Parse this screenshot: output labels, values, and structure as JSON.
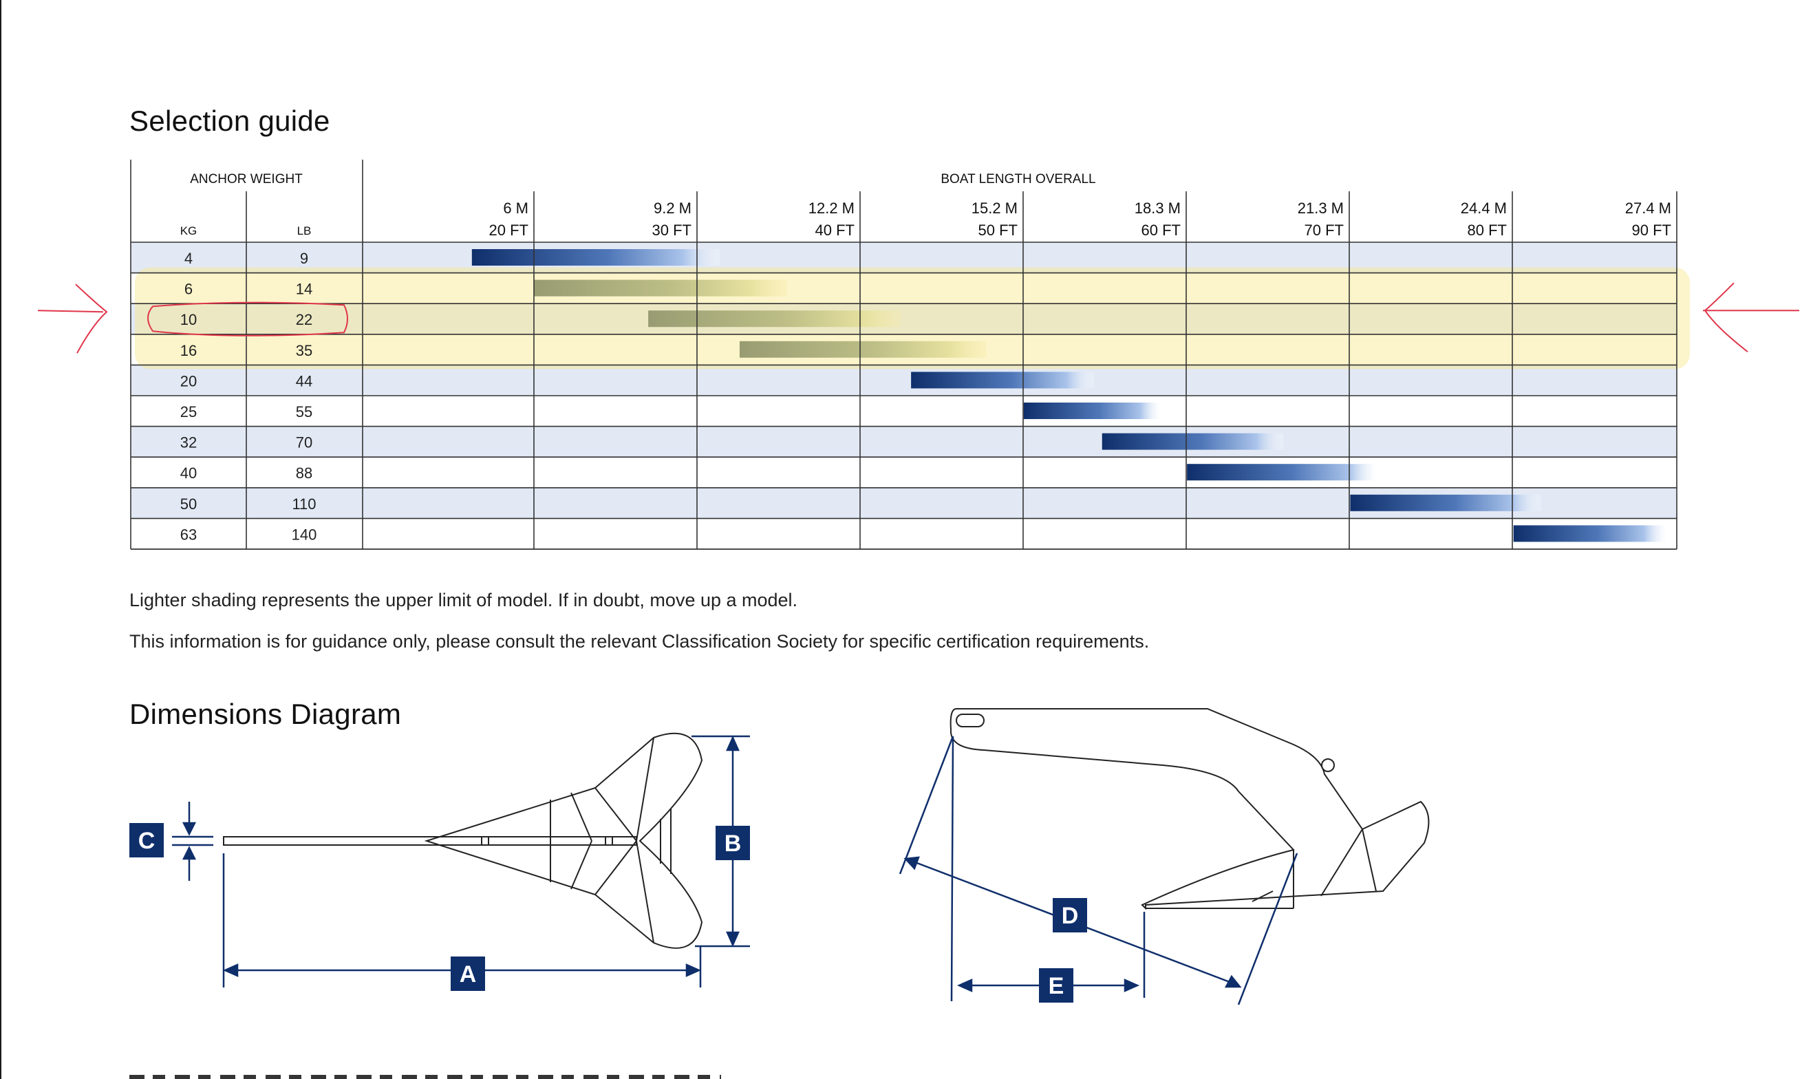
{
  "headings": {
    "selection": "Selection guide",
    "dimensions": "Dimensions Diagram"
  },
  "table": {
    "anchor_weight": "ANCHOR WEIGHT",
    "boat_length": "BOAT LENGTH OVERALL",
    "col_kg": "KG",
    "col_lb": "LB",
    "length_ticks": [
      {
        "m": "6",
        "m_unit": "M",
        "ft": "20",
        "ft_unit": "FT"
      },
      {
        "m": "9.2",
        "m_unit": "M",
        "ft": "30",
        "ft_unit": "FT"
      },
      {
        "m": "12.2",
        "m_unit": "M",
        "ft": "40",
        "ft_unit": "FT"
      },
      {
        "m": "15.2",
        "m_unit": "M",
        "ft": "50",
        "ft_unit": "FT"
      },
      {
        "m": "18.3",
        "m_unit": "M",
        "ft": "60",
        "ft_unit": "FT"
      },
      {
        "m": "21.3",
        "m_unit": "M",
        "ft": "70",
        "ft_unit": "FT"
      },
      {
        "m": "24.4",
        "m_unit": "M",
        "ft": "80",
        "ft_unit": "FT"
      },
      {
        "m": "27.4",
        "m_unit": "M",
        "ft": "90",
        "ft_unit": "FT"
      }
    ],
    "rows": [
      {
        "kg": "4",
        "lb": "9",
        "range_ft": [
          16.2,
          31.4
        ]
      },
      {
        "kg": "6",
        "lb": "14",
        "range_ft": [
          20,
          35.5
        ]
      },
      {
        "kg": "10",
        "lb": "22",
        "range_ft": [
          27,
          42.5
        ]
      },
      {
        "kg": "16",
        "lb": "35",
        "range_ft": [
          32.6,
          47.7
        ]
      },
      {
        "kg": "20",
        "lb": "44",
        "range_ft": [
          43.1,
          54.3
        ]
      },
      {
        "kg": "25",
        "lb": "55",
        "range_ft": [
          50,
          58.4
        ]
      },
      {
        "kg": "32",
        "lb": "70",
        "range_ft": [
          54.8,
          65.9
        ]
      },
      {
        "kg": "40",
        "lb": "88",
        "range_ft": [
          60,
          71.7
        ]
      },
      {
        "kg": "50",
        "lb": "110",
        "range_ft": [
          70,
          81.7
        ]
      },
      {
        "kg": "63",
        "lb": "140",
        "range_ft": [
          80,
          89.4
        ]
      }
    ],
    "highlighted_rows": [
      1,
      2,
      3
    ],
    "circled_row": 2
  },
  "notes": [
    "Lighter shading represents the upper limit of model. If in doubt, move up a model.",
    "This information is for guidance only, please consult the relevant Classification Society for specific certification requirements."
  ],
  "dimension_labels": {
    "a": "A",
    "b": "B",
    "c": "C",
    "d": "D",
    "e": "E"
  },
  "colors": {
    "navy": "#0f2f6b",
    "stripe": "#e2e9f5",
    "highlight": "#f8e68a",
    "annotation": "#e0364a"
  }
}
